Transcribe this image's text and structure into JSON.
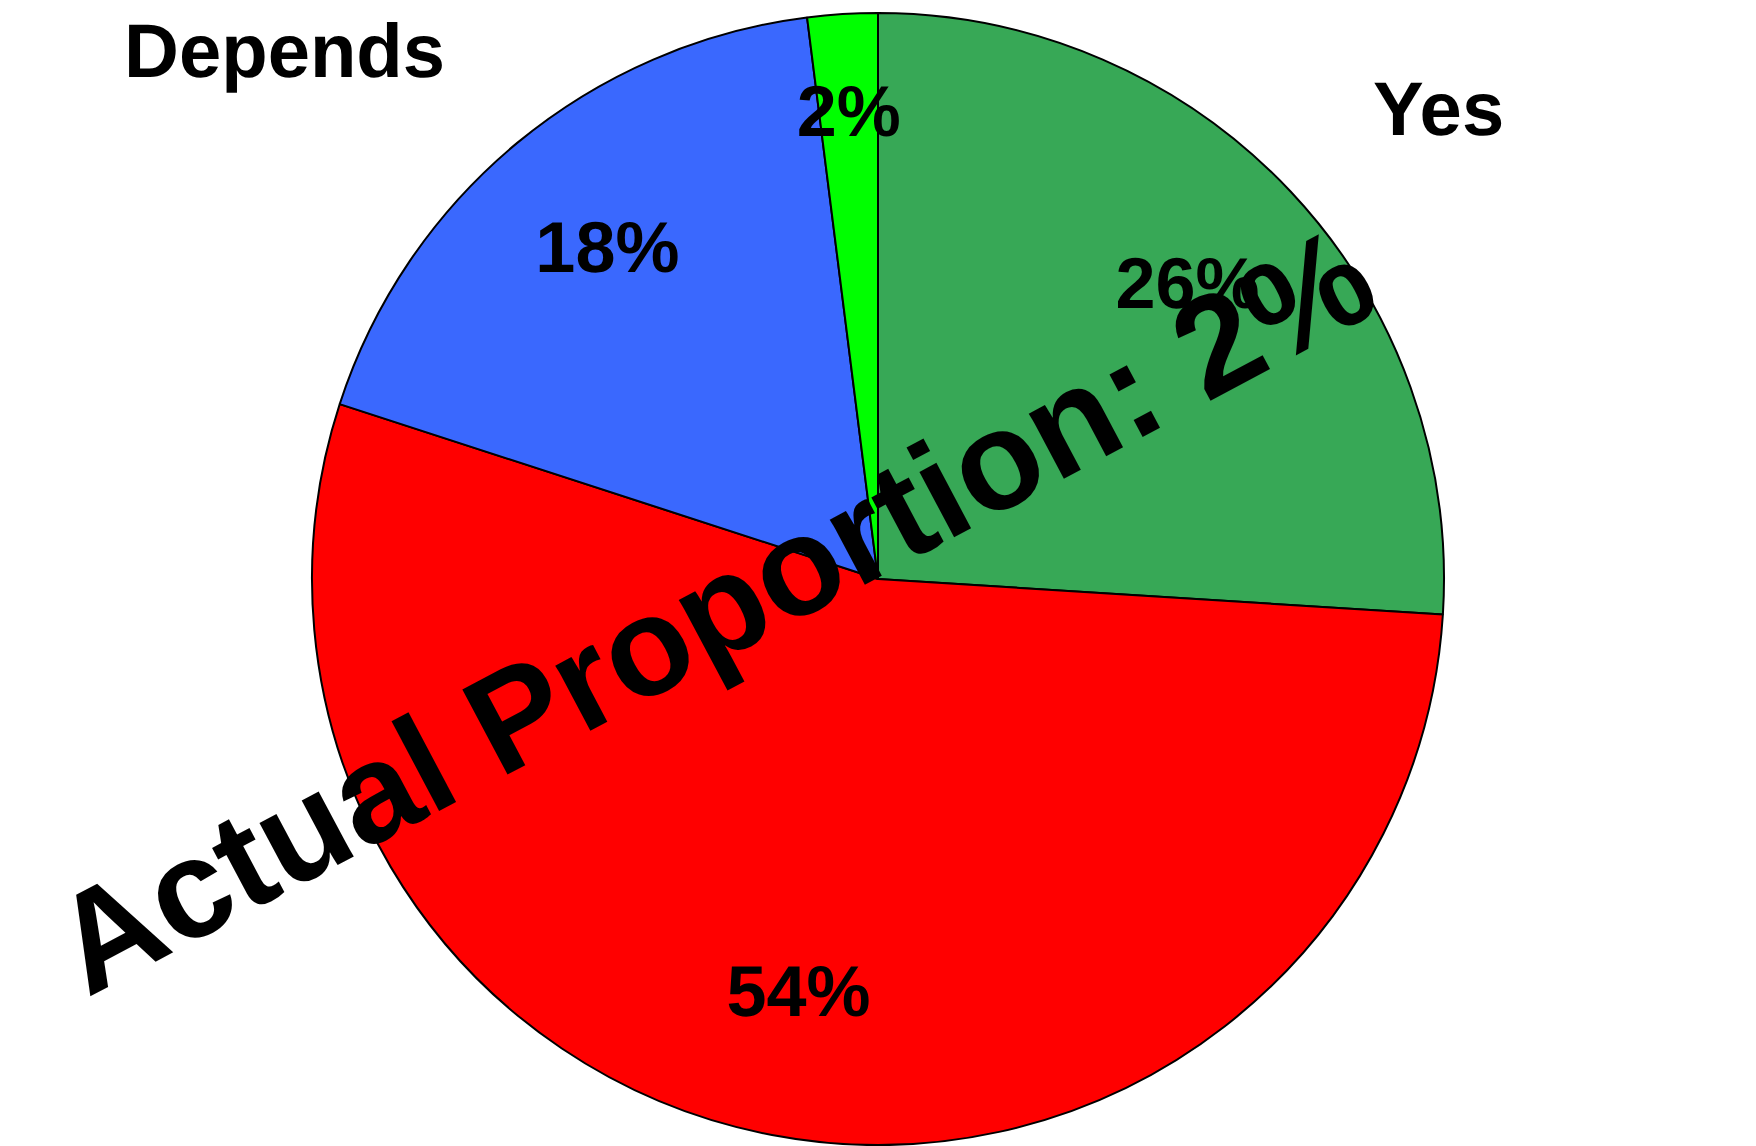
{
  "chart_data": {
    "type": "pie",
    "categories": [
      "Yes",
      null,
      "Depends",
      null
    ],
    "values": [
      26,
      54,
      18,
      2
    ],
    "value_labels": [
      "26%",
      "54%",
      "18%",
      "2%"
    ],
    "colors": [
      "#37a856",
      "#ff0000",
      "#3a68fe",
      "#00ff00"
    ],
    "annotations": [
      "Actual Proportion: 2%"
    ],
    "legend": false
  }
}
